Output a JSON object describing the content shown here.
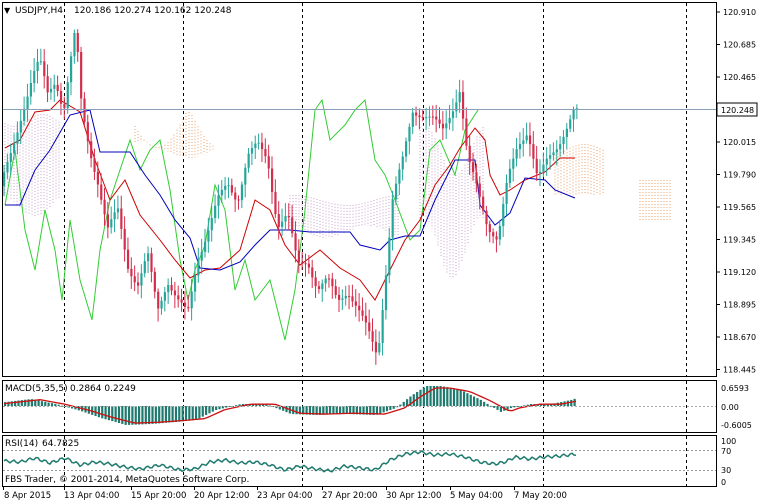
{
  "main_panel": {
    "symbol": "USDJPY,H4",
    "ohlc": "120.186 120.274 120.162 120.248",
    "price_ticks": [
      "120.910",
      "120.685",
      "120.465",
      "120.240",
      "120.015",
      "119.790",
      "119.565",
      "119.345",
      "119.120",
      "118.895",
      "118.670",
      "118.445"
    ],
    "current_price": "120.248"
  },
  "macd_panel": {
    "label": "MACD(5,35,5)",
    "values": "0.2864 0.2249",
    "ticks": [
      "0.6593",
      "0.00",
      "-0.6005"
    ]
  },
  "rsi_panel": {
    "label": "RSI(14)",
    "value": "64.7825",
    "ticks": [
      "100",
      "70",
      "30",
      "0"
    ],
    "footer": "FBS Trader, © 2001-2014, MetaQuotes Software Corp."
  },
  "time_axis": {
    "labels": [
      "8 Apr 2015",
      "13 Apr 04:00",
      "15 Apr 20:00",
      "20 Apr 12:00",
      "23 Apr 04:00",
      "27 Apr 20:00",
      "30 Apr 12:00",
      "5 May 04:00",
      "7 May 20:00"
    ]
  },
  "colors": {
    "bull": "#26a69a",
    "bear": "#d32f4d",
    "tenkan": "#cc0000",
    "kijun": "#0000bb",
    "chikou": "#33cc33",
    "cloud_up": "#e8a06a",
    "cloud_dn": "#c8a0c8",
    "macd_hist": "#1e7a6e",
    "macd_signal": "#cc1111",
    "rsi_line": "#1e7a6e"
  }
}
